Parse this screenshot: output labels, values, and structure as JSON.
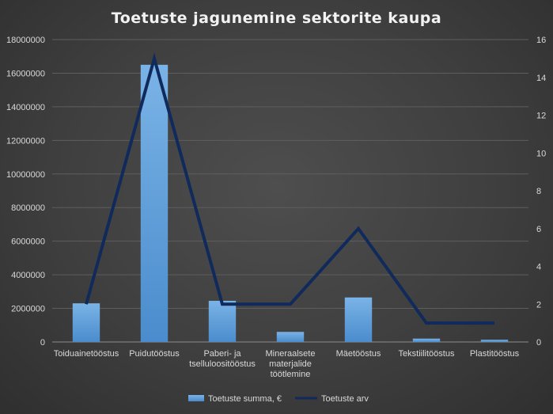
{
  "chart_data": {
    "type": "bar",
    "title": "Toetuste jagunemine sektorite kaupa",
    "categories": [
      [
        "Toiduainetööstus"
      ],
      [
        "Puidutööstus"
      ],
      [
        "Paberi- ja",
        "tselluloositööstus"
      ],
      [
        "Mineraalsete",
        "materjalide",
        "töötlemine"
      ],
      [
        "Mäetööstus"
      ],
      [
        "Tekstiilitööstus"
      ],
      [
        "Plastitööstus"
      ]
    ],
    "series": [
      {
        "name": "Toetuste summa, €",
        "type": "bar",
        "axis": "left",
        "color": "#5b9bd5",
        "values": [
          2300000,
          16500000,
          2450000,
          600000,
          2650000,
          200000,
          130000
        ]
      },
      {
        "name": "Toetuste arv",
        "type": "line",
        "axis": "right",
        "color": "#102a5c",
        "values": [
          2,
          15,
          2,
          2,
          6,
          1,
          1
        ]
      }
    ],
    "y_left": {
      "min": 0,
      "max": 18000000,
      "step": 2000000,
      "ticks": [
        "0",
        "2000000",
        "4000000",
        "6000000",
        "8000000",
        "10000000",
        "12000000",
        "14000000",
        "16000000",
        "18000000"
      ]
    },
    "y_right": {
      "min": 0,
      "max": 16,
      "step": 2,
      "ticks": [
        "0",
        "2",
        "4",
        "6",
        "8",
        "10",
        "12",
        "14",
        "16"
      ]
    },
    "grid": true,
    "legend_position": "bottom"
  }
}
